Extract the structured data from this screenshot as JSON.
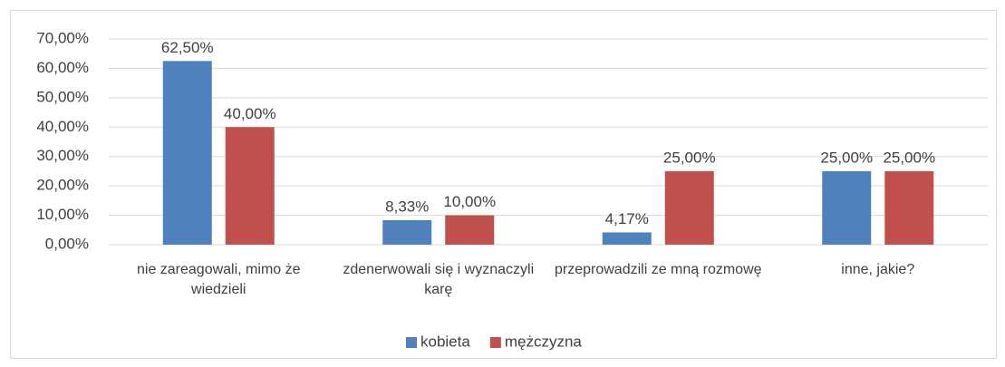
{
  "chart_data": {
    "type": "bar",
    "categories": [
      "nie zareagowali, mimo że wiedzieli",
      "zdenerwowali się i wyznaczyli karę",
      "przeprowadzili ze mną rozmowę",
      "inne, jakie?"
    ],
    "series": [
      {
        "name": "kobieta",
        "color": "#4f81bd",
        "values": [
          62.5,
          8.33,
          4.17,
          25
        ],
        "value_labels": [
          "62,50%",
          "8,33%",
          "4,17%",
          "25,00%"
        ]
      },
      {
        "name": "mężczyzna",
        "color": "#c0504d",
        "values": [
          40,
          10,
          25,
          25
        ],
        "value_labels": [
          "40,00%",
          "10,00%",
          "25,00%",
          "25,00%"
        ]
      }
    ],
    "ylim": [
      0,
      70
    ],
    "yticks": [
      {
        "value": 0,
        "label": "0,00%"
      },
      {
        "value": 10,
        "label": "10,00%"
      },
      {
        "value": 20,
        "label": "20,00%"
      },
      {
        "value": 30,
        "label": "30,00%"
      },
      {
        "value": 40,
        "label": "40,00%"
      },
      {
        "value": 50,
        "label": "50,00%"
      },
      {
        "value": 60,
        "label": "60,00%"
      },
      {
        "value": 70,
        "label": "70,00%"
      }
    ],
    "grid": true,
    "legend": "bottom"
  }
}
